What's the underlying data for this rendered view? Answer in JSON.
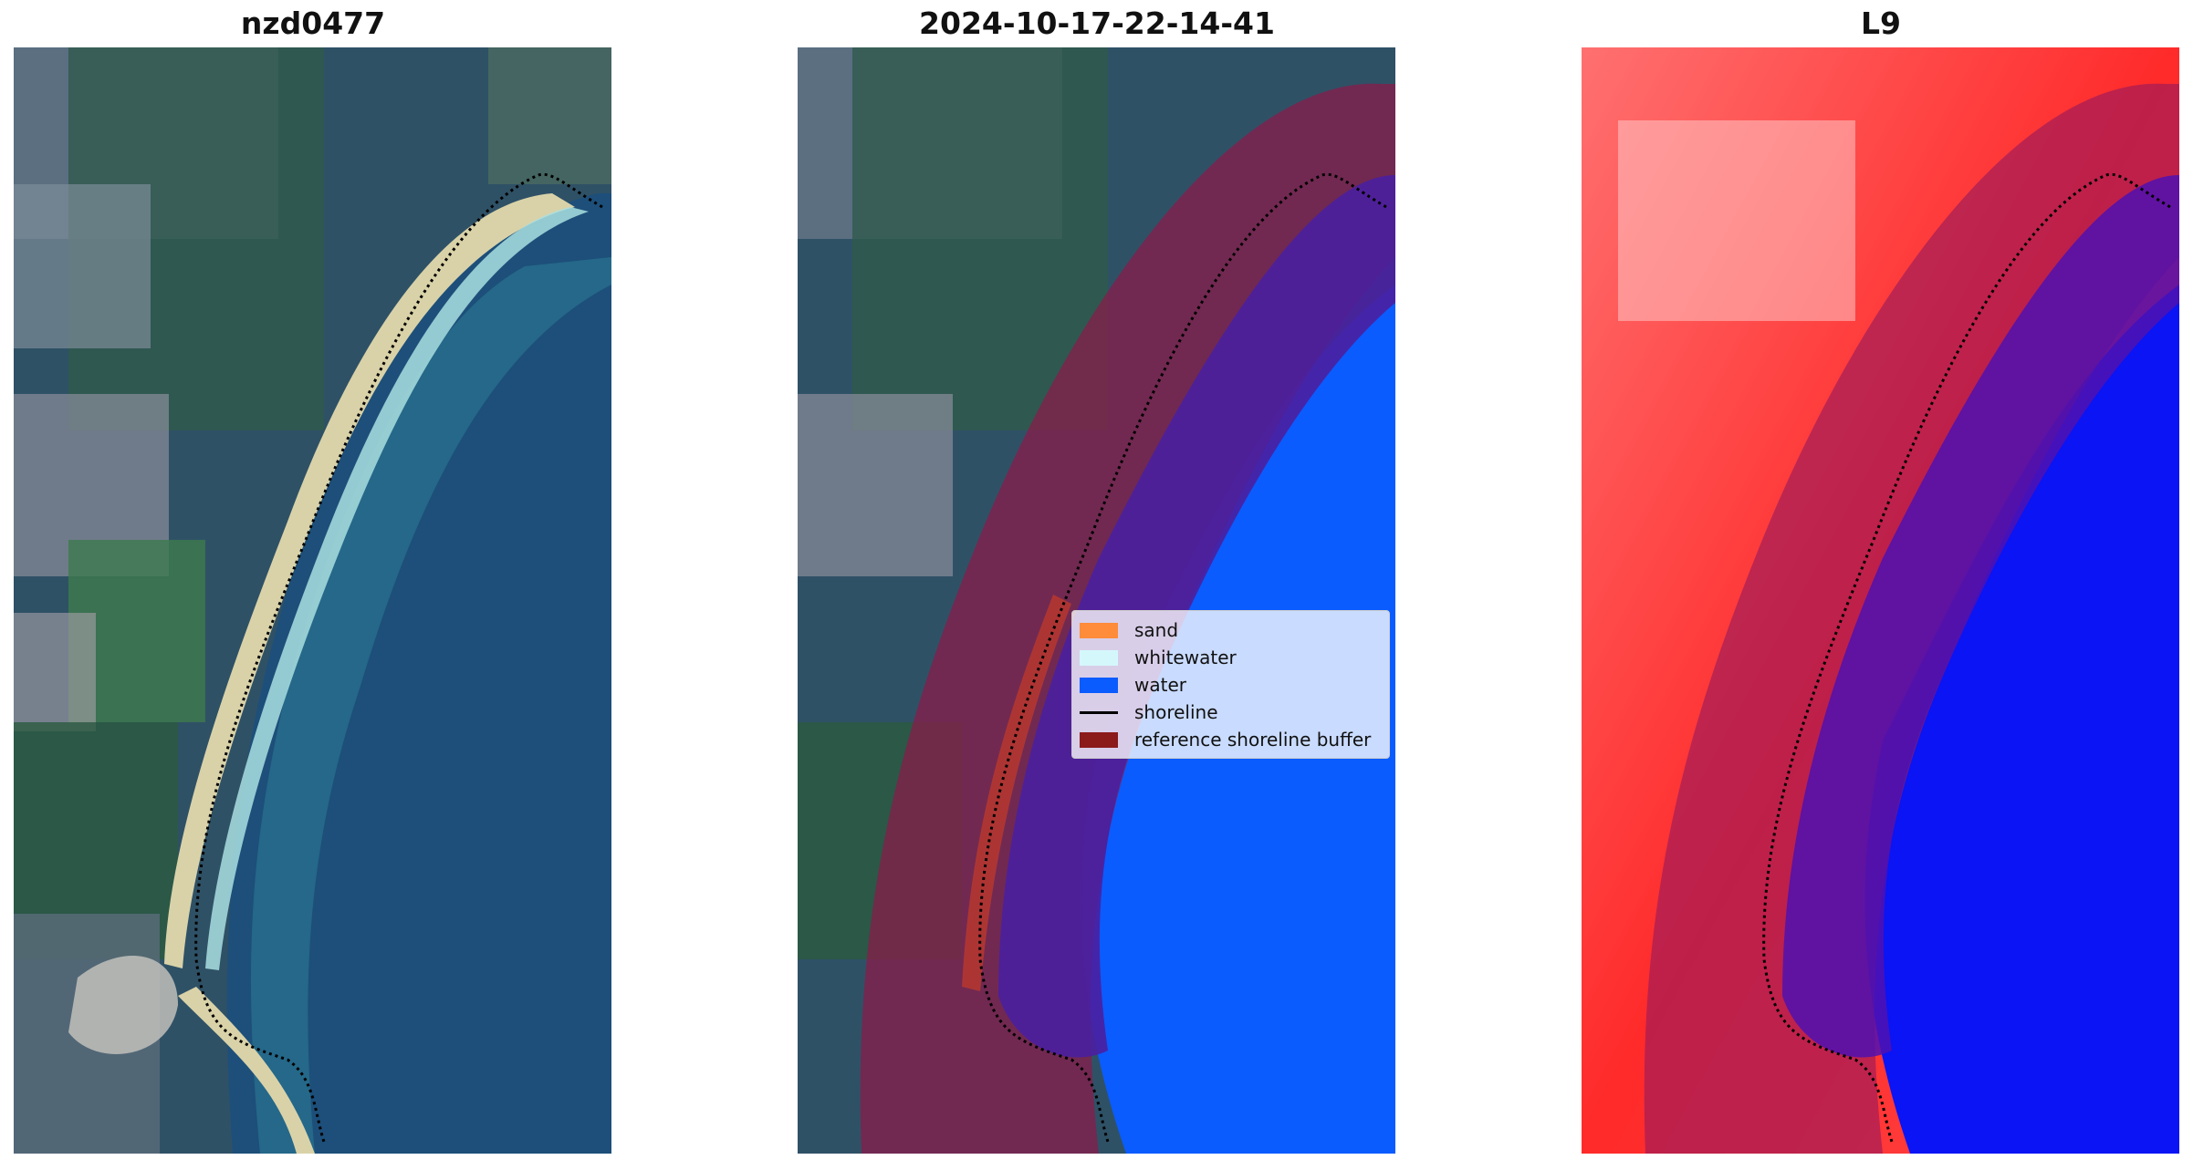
{
  "panels": [
    {
      "title": "nzd0477"
    },
    {
      "title": "2024-10-17-22-14-41"
    },
    {
      "title": "L9"
    }
  ],
  "legend": {
    "items": [
      {
        "label": "sand",
        "color": "#ff8c3a",
        "kind": "patch"
      },
      {
        "label": "whitewater",
        "color": "#d4f7fb",
        "kind": "patch"
      },
      {
        "label": "water",
        "color": "#0a5cff",
        "kind": "patch"
      },
      {
        "label": "shoreline",
        "color": "#000000",
        "kind": "line"
      },
      {
        "label": "reference shoreline buffer",
        "color": "#8b1a1a",
        "kind": "patch"
      }
    ]
  },
  "colors": {
    "land": "#3f6a5a",
    "ocean": "#1d4f7a",
    "beach": "#d9d2a8",
    "buffer": "#8b1a4a",
    "water_class": "#0a5cff",
    "classified_water": "#4a1fa0"
  }
}
